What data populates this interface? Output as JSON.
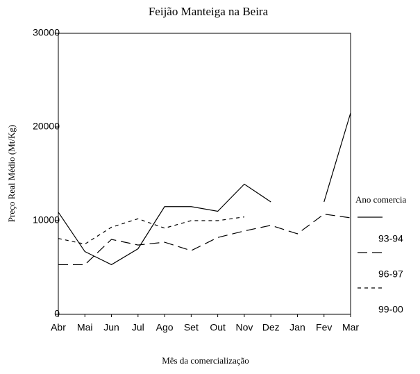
{
  "chart_data": {
    "type": "line",
    "title": "Feijão Manteiga na Beira",
    "x_label": "Mês da comercialização",
    "y_label": "Preço Real Médio (Mt/Kg)",
    "legend_title": "Ano comercia",
    "categories": [
      "Abr",
      "Mai",
      "Jun",
      "Jul",
      "Ago",
      "Set",
      "Out",
      "Nov",
      "Dez",
      "Jan",
      "Fev",
      "Mar"
    ],
    "series": [
      {
        "name": "93-94",
        "color": "#000000",
        "dash": "solid",
        "values": [
          10900,
          6700,
          5300,
          7000,
          11500,
          11500,
          11000,
          13900,
          12000,
          null,
          12000,
          21500
        ]
      },
      {
        "name": "96-97",
        "color": "#000000",
        "dash": "long",
        "values": [
          5300,
          5300,
          8000,
          7400,
          7700,
          6800,
          8200,
          8900,
          9500,
          8600,
          10700,
          10300
        ]
      },
      {
        "name": "99-00",
        "color": "#000000",
        "dash": "short",
        "values": [
          8100,
          7500,
          9300,
          10200,
          9200,
          10000,
          10000,
          10400,
          null,
          null,
          null,
          null
        ]
      }
    ],
    "ylim": [
      0,
      30000
    ],
    "yticks": [
      0,
      10000,
      20000,
      30000
    ],
    "grid": false,
    "legend": "right"
  }
}
